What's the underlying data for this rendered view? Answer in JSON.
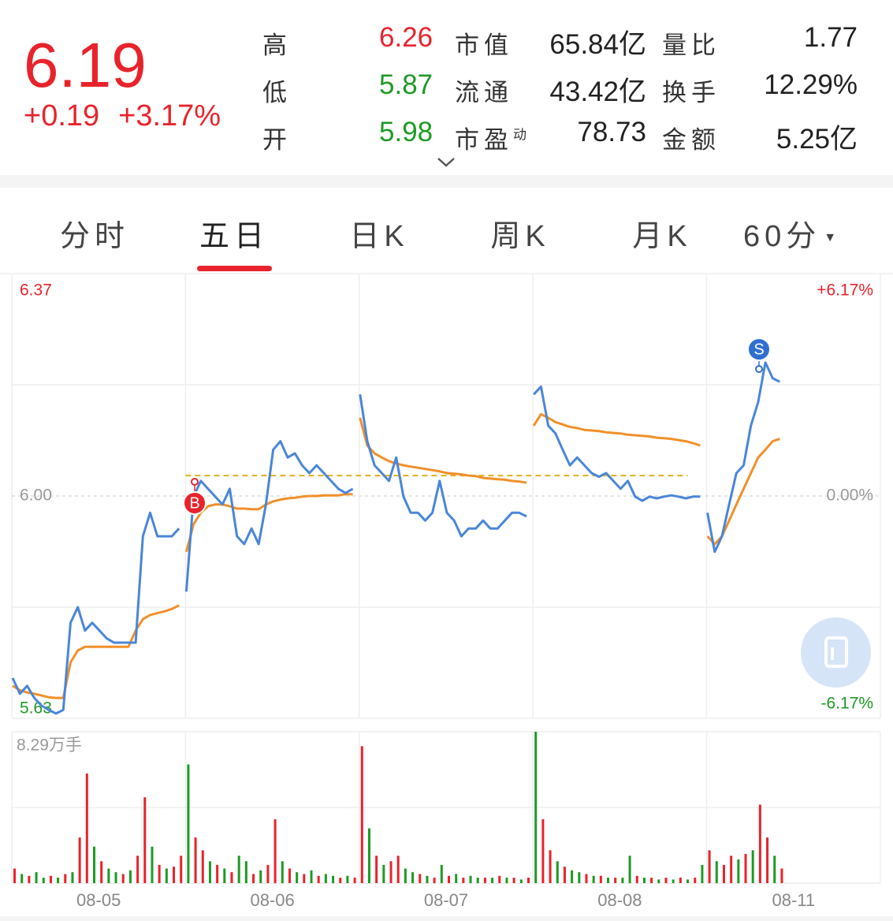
{
  "header": {
    "price": "6.19",
    "change": "+0.19",
    "change_pct": "+3.17%",
    "up_color": "#e8232b",
    "down_color": "#1d9a25",
    "stats": [
      {
        "label": "高",
        "value": "6.26",
        "value_color": "#e8232b",
        "items": [
          {
            "label": "市值",
            "value": "65.84亿"
          },
          {
            "label": "量比",
            "value": "1.77"
          }
        ]
      },
      {
        "label": "低",
        "value": "5.87",
        "value_color": "#1d9a25",
        "items": [
          {
            "label": "流通",
            "value": "43.42亿"
          },
          {
            "label": "换手",
            "value": "12.29%"
          }
        ]
      },
      {
        "label": "开",
        "value": "5.98",
        "value_color": "#1d9a25",
        "items": [
          {
            "label": "市盈",
            "sup": "动",
            "value": "78.73"
          },
          {
            "label": "金额",
            "value": "5.25亿"
          }
        ]
      }
    ]
  },
  "tabs": {
    "items": [
      "分时",
      "五日",
      "日K",
      "周K",
      "月K",
      "60分"
    ],
    "active": 1
  },
  "chart_data": [
    {
      "type": "line",
      "categories": [
        "08-05",
        "08-06",
        "08-07",
        "08-08",
        "08-11"
      ],
      "ylim": [
        5.63,
        6.37
      ],
      "yticks": [
        6.37,
        {
          "value": 6,
          "label": "6.00"
        },
        5.63
      ],
      "ygrid": [
        6.185,
        5.815
      ],
      "y2lim": [
        -6.17,
        6.17
      ],
      "y2ticks": [
        {
          "value": 6.17,
          "label": "+6.17%"
        },
        {
          "value": 0,
          "label": "0.00%"
        },
        {
          "value": -6.17,
          "label": "-6.17%"
        }
      ],
      "reference_line": 6.034,
      "reference_color": "#e0b020",
      "annotations": [
        "B",
        "S"
      ],
      "series": [
        {
          "color": "#4a86d8",
          "values": [
            [
              5.697,
              5.671,
              5.684,
              5.664,
              5.651,
              5.644,
              5.638,
              5.644,
              5.789,
              5.815,
              5.776,
              5.789,
              5.776,
              5.763,
              5.756,
              5.756,
              5.756,
              5.756,
              5.933,
              5.972,
              5.933,
              5.933,
              5.933,
              5.946
            ],
            [
              5.841,
              5.999,
              6.025,
              6.012,
              5.999,
              5.986,
              6.012,
              5.933,
              5.92,
              5.946,
              5.92,
              5.986,
              6.077,
              6.091,
              6.064,
              6.071,
              6.051,
              6.038,
              6.051,
              6.038,
              6.025,
              6.012,
              6.005,
              6.012
            ],
            [
              6.169,
              6.091,
              6.051,
              6.038,
              6.025,
              6.064,
              5.999,
              5.972,
              5.972,
              5.959,
              5.972,
              6.025,
              5.972,
              5.959,
              5.933,
              5.946,
              5.946,
              5.959,
              5.946,
              5.946,
              5.959,
              5.972,
              5.972,
              5.966
            ],
            [
              6.169,
              6.182,
              6.117,
              6.104,
              6.077,
              6.051,
              6.064,
              6.051,
              6.038,
              6.032,
              6.038,
              6.025,
              6.012,
              6.025,
              5.999,
              5.992,
              5.999,
              5.996,
              5.999,
              6.001,
              5.999,
              5.996,
              5.999,
              5.999
            ],
            [
              5.972,
              5.907,
              5.933,
              5.986,
              6.038,
              6.051,
              6.117,
              6.156,
              6.222,
              6.196,
              6.19
            ]
          ]
        },
        {
          "color": "#f0902a",
          "values": [
            [
              5.684,
              5.677,
              5.673,
              5.671,
              5.668,
              5.665,
              5.664,
              5.664,
              5.723,
              5.743,
              5.749,
              5.749,
              5.749,
              5.749,
              5.749,
              5.749,
              5.749,
              5.776,
              5.795,
              5.802,
              5.805,
              5.808,
              5.812,
              5.818
            ],
            [
              5.907,
              5.953,
              5.972,
              5.983,
              5.986,
              5.986,
              5.983,
              5.979,
              5.979,
              5.978,
              5.978,
              5.986,
              5.991,
              5.994,
              5.996,
              5.997,
              5.999,
              6.0,
              6.0,
              6.001,
              6.001,
              6.001,
              6.003,
              6.003
            ],
            [
              6.13,
              6.084,
              6.071,
              6.064,
              6.058,
              6.054,
              6.051,
              6.049,
              6.047,
              6.045,
              6.043,
              6.041,
              6.038,
              6.037,
              6.036,
              6.034,
              6.033,
              6.03,
              6.029,
              6.028,
              6.027,
              6.025,
              6.024,
              6.022
            ],
            [
              6.117,
              6.136,
              6.13,
              6.123,
              6.119,
              6.115,
              6.113,
              6.11,
              6.109,
              6.108,
              6.106,
              6.105,
              6.104,
              6.102,
              6.101,
              6.1,
              6.099,
              6.097,
              6.096,
              6.095,
              6.093,
              6.091,
              6.088,
              6.084
            ],
            [
              5.933,
              5.92,
              5.933,
              5.959,
              5.986,
              6.012,
              6.038,
              6.064,
              6.077,
              6.091,
              6.095
            ]
          ]
        }
      ]
    },
    {
      "type": "bar",
      "ylim": [
        0,
        8.29
      ],
      "yticks": [
        {
          "value": 8.29,
          "label": "8.29万手"
        }
      ],
      "ygrid": [
        4.145
      ],
      "series": [
        {
          "color": "#e8232b",
          "values": [
            [
              0.8,
              null,
              0.4,
              null,
              null,
              0.4,
              null,
              0.5,
              null,
              2.5,
              6.0,
              null,
              1.2,
              null,
              null,
              0.5,
              null,
              1.5,
              4.7,
              null,
              1.0,
              null,
              0.9,
              1.5
            ],
            [
              null,
              2.5,
              1.8,
              null,
              1.0,
              null,
              0.6,
              null,
              null,
              0.5,
              null,
              1.0,
              3.5,
              null,
              0.8,
              null,
              0.5,
              null,
              0.4,
              null,
              null,
              0.3,
              null,
              0.3
            ],
            [
              7.5,
              null,
              1.5,
              null,
              1.2,
              1.5,
              null,
              null,
              0.5,
              null,
              0.3,
              null,
              0.4,
              null,
              0.3,
              null,
              null,
              0.3,
              null,
              0.4,
              null,
              0.3,
              null,
              0.3
            ],
            [
              null,
              3.5,
              1.8,
              null,
              0.9,
              null,
              null,
              0.5,
              null,
              0.4,
              null,
              0.3,
              null,
              null,
              0.4,
              null,
              0.3,
              null,
              0.3,
              null,
              0.3,
              null,
              0.3,
              null
            ],
            [
              1.8,
              null,
              1.0,
              1.5,
              null,
              1.6,
              null,
              4.3,
              2.5,
              null,
              0.8
            ]
          ]
        },
        {
          "color": "#1d9a25",
          "values": [
            [
              null,
              0.5,
              null,
              0.6,
              0.3,
              null,
              0.3,
              null,
              0.6,
              null,
              null,
              2.0,
              null,
              0.8,
              0.6,
              null,
              0.7,
              null,
              null,
              2.0,
              null,
              0.8,
              null,
              null
            ],
            [
              6.5,
              null,
              null,
              1.2,
              null,
              0.8,
              null,
              1.5,
              1.2,
              null,
              0.7,
              null,
              null,
              1.2,
              null,
              0.6,
              null,
              0.7,
              null,
              0.5,
              0.4,
              null,
              0.4,
              null
            ],
            [
              null,
              3.0,
              null,
              1.0,
              null,
              null,
              0.8,
              0.6,
              null,
              0.4,
              null,
              1.0,
              null,
              0.5,
              null,
              0.4,
              0.3,
              null,
              0.3,
              null,
              0.3,
              null,
              0.2,
              null
            ],
            [
              8.29,
              null,
              null,
              1.2,
              null,
              0.7,
              0.6,
              null,
              0.4,
              null,
              0.3,
              null,
              0.3,
              1.5,
              null,
              0.3,
              null,
              0.2,
              null,
              0.2,
              null,
              0.2,
              null,
              1.0
            ],
            [
              null,
              1.2,
              null,
              null,
              1.3,
              null,
              1.8,
              null,
              null,
              1.5,
              null
            ]
          ]
        }
      ]
    }
  ]
}
